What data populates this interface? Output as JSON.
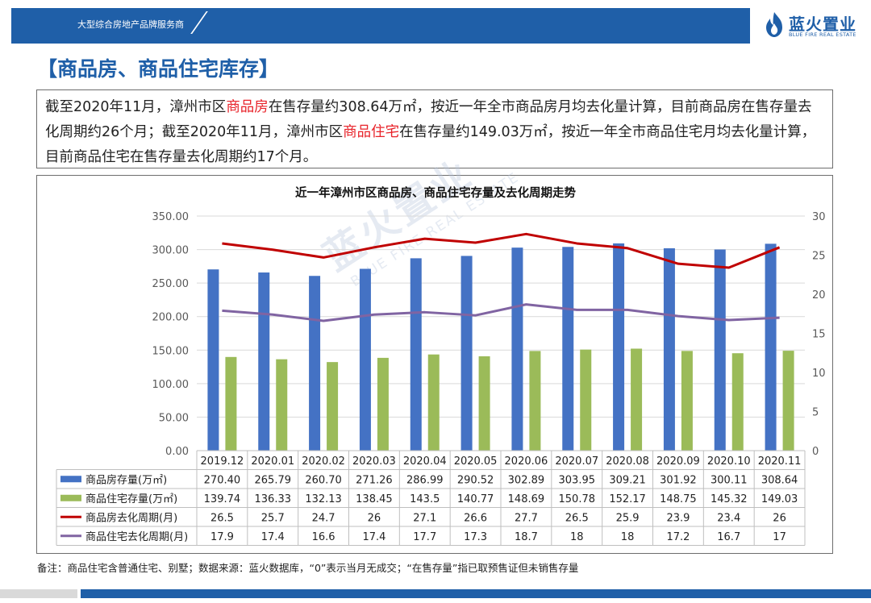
{
  "header": {
    "tagline": "大型综合房地产品牌服务商",
    "logo_cn": "蓝火置业",
    "logo_en": "BLUE FIRE REAL ESTATE"
  },
  "page_title": "【商品房、商品住宅库存】",
  "summary": {
    "p1": "截至2020年11月，漳州市区",
    "h1": "商品房",
    "p2": "在售存量约308.64万㎡，按近一年全市商品房月均去化量计算，目前商品房在售存量去化周期约26个月；截至2020年11月，漳州市区",
    "h2": "商品住宅",
    "p3": "在售存量约149.03万㎡，按近一年全市商品住宅月均去化量计算，目前商品住宅在售存量去化周期约17个月。"
  },
  "note": "备注：商品住宅含普通住宅、别墅；数据来源：蓝火数据库，“0”表示当月无成交；“在售存量”指已取预售证但未销售存量",
  "colors": {
    "brand": "#1f5fa8",
    "bar_commercial": "#4472c4",
    "bar_residential": "#9bbb59",
    "line_commercial": "#c00000",
    "line_residential": "#8064a2",
    "highlight": "#e8232a"
  },
  "chart_data": {
    "type": "bar",
    "title": "近一年漳州市区商品房、商品住宅存量及去化周期走势",
    "categories": [
      "2019.12",
      "2020.01",
      "2020.02",
      "2020.03",
      "2020.04",
      "2020.05",
      "2020.06",
      "2020.07",
      "2020.08",
      "2020.09",
      "2020.10",
      "2020.11"
    ],
    "series": [
      {
        "name": "商品房存量(万㎡)",
        "kind": "bar",
        "axis": "left",
        "values": [
          270.4,
          265.79,
          260.7,
          271.26,
          286.99,
          290.52,
          302.89,
          303.95,
          309.21,
          301.92,
          300.11,
          308.64
        ],
        "labels": [
          "270.40",
          "265.79",
          "260.70",
          "271.26",
          "286.99",
          "290.52",
          "302.89",
          "303.95",
          "309.21",
          "301.92",
          "300.11",
          "308.64"
        ]
      },
      {
        "name": "商品住宅存量(万㎡)",
        "kind": "bar",
        "axis": "left",
        "values": [
          139.74,
          136.33,
          132.13,
          138.45,
          143.5,
          140.77,
          148.69,
          150.78,
          152.17,
          148.75,
          145.32,
          149.03
        ],
        "labels": [
          "139.74",
          "136.33",
          "132.13",
          "138.45",
          "143.5",
          "140.77",
          "148.69",
          "150.78",
          "152.17",
          "148.75",
          "145.32",
          "149.03"
        ]
      },
      {
        "name": "商品房去化周期(月)",
        "kind": "line",
        "axis": "right",
        "values": [
          26.5,
          25.7,
          24.7,
          26,
          27.1,
          26.6,
          27.7,
          26.5,
          25.9,
          23.9,
          23.4,
          26
        ],
        "labels": [
          "26.5",
          "25.7",
          "24.7",
          "26",
          "27.1",
          "26.6",
          "27.7",
          "26.5",
          "25.9",
          "23.9",
          "23.4",
          "26"
        ]
      },
      {
        "name": "商品住宅去化周期(月)",
        "kind": "line",
        "axis": "right",
        "values": [
          17.9,
          17.4,
          16.6,
          17.4,
          17.7,
          17.3,
          18.7,
          18,
          18,
          17.2,
          16.7,
          17
        ],
        "labels": [
          "17.9",
          "17.4",
          "16.6",
          "17.4",
          "17.7",
          "17.3",
          "18.7",
          "18",
          "18",
          "17.2",
          "16.7",
          "17"
        ]
      }
    ],
    "ylim_left": [
      0,
      350
    ],
    "yticks_left": [
      "0.00",
      "50.00",
      "100.00",
      "150.00",
      "200.00",
      "250.00",
      "300.00",
      "350.00"
    ],
    "ylim_right": [
      0,
      30
    ],
    "yticks_right": [
      "0",
      "5",
      "10",
      "15",
      "20",
      "25",
      "30"
    ],
    "legend": "data-table"
  }
}
